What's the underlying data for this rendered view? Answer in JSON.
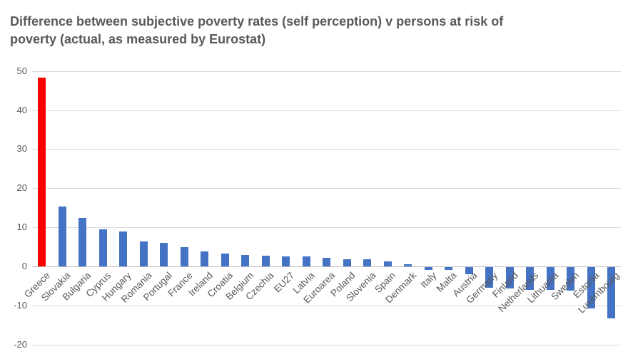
{
  "title": "Difference between subjective poverty rates (self perception) v persons at risk of\npoverty (actual, as measured by Eurostat)",
  "chart_data": {
    "type": "bar",
    "title": "Difference between subjective poverty rates (self perception) v persons at risk of poverty (actual, as measured by Eurostat)",
    "xlabel": "",
    "ylabel": "",
    "categories": [
      "Greece",
      "Slovakia",
      "Bulgaria",
      "Cyprus",
      "Hungary",
      "Romania",
      "Portugal",
      "France",
      "Ireland",
      "Croatia",
      "Belgium",
      "Czechia",
      "EU27",
      "Latvia",
      "Euroarea",
      "Poland",
      "Slovenia",
      "Spain",
      "Denmark",
      "Italy",
      "Malta",
      "Austria",
      "Germany",
      "Finland",
      "Netherlands",
      "Lithuania",
      "Sweden",
      "Estonia",
      "Luxembourg"
    ],
    "values": [
      48.3,
      15.3,
      12.4,
      9.4,
      8.9,
      6.4,
      6.0,
      5.0,
      3.9,
      3.3,
      2.9,
      2.8,
      2.6,
      2.5,
      2.2,
      1.9,
      1.8,
      1.3,
      0.6,
      -0.8,
      -0.8,
      -1.9,
      -5.3,
      -5.4,
      -5.8,
      -5.9,
      -6.0,
      -10.6,
      -13.2
    ],
    "highlight_index": 0,
    "colors": {
      "default": "#4472C4",
      "highlight": "#FF0000"
    },
    "ylim": [
      -20,
      50
    ],
    "yticks": [
      50,
      40,
      30,
      20,
      10,
      0,
      -10,
      -20
    ],
    "grid": true,
    "legend": "none",
    "x_label_rotation_deg": 45
  }
}
